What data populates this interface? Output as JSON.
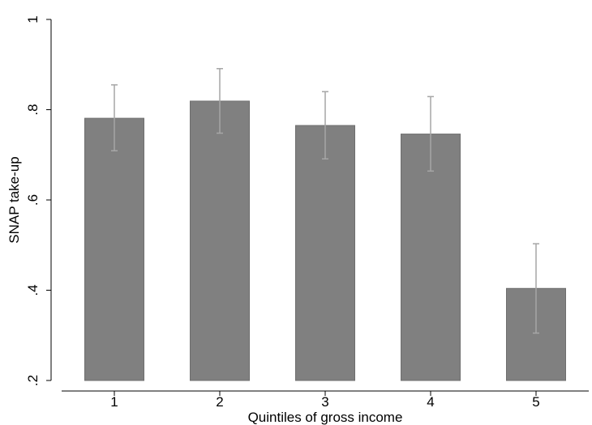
{
  "chart_data": {
    "type": "bar",
    "title": "",
    "xlabel": "Quintiles of gross income",
    "ylabel": "SNAP take-up",
    "categories": [
      "1",
      "2",
      "3",
      "4",
      "5"
    ],
    "series": [
      {
        "values": [
          0.781,
          0.819,
          0.765,
          0.746,
          0.404
        ],
        "ci_lower": [
          0.709,
          0.748,
          0.691,
          0.664,
          0.305
        ],
        "ci_upper": [
          0.855,
          0.891,
          0.84,
          0.829,
          0.503
        ]
      }
    ],
    "ylim": [
      0.2,
      1.0
    ],
    "yticks": [
      0.2,
      0.4,
      0.6,
      0.8,
      1.0
    ],
    "ytick_labels": [
      ".2",
      ".4",
      ".6",
      ".8",
      "1"
    ],
    "grid": false,
    "legend": "none",
    "colors": {
      "bar": "#808080",
      "bar_edge": "#6e6e6e",
      "error_bar": "#a6a6a6",
      "axis": "#000000"
    }
  }
}
